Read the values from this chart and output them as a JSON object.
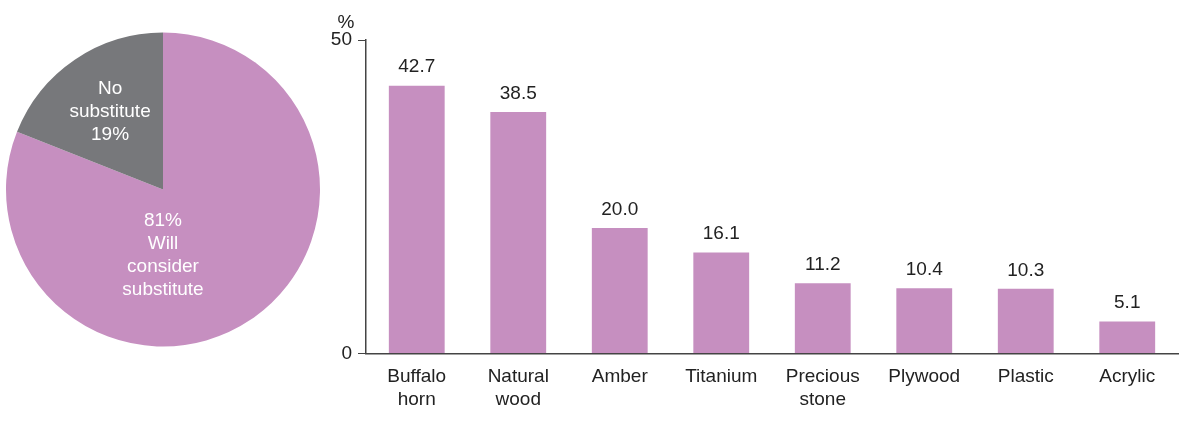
{
  "chart_data": [
    {
      "type": "pie",
      "categories": [
        "Will consider substitute",
        "No substitute"
      ],
      "values": [
        81,
        19
      ],
      "colors": [
        "#c68fc0",
        "#77787b"
      ],
      "value_labels": [
        "81%",
        "19%"
      ],
      "legend": false
    },
    {
      "type": "bar",
      "ylabel": "%",
      "categories": [
        "Buffalo horn",
        "Natural wood",
        "Amber",
        "Titanium",
        "Precious stone",
        "Plywood",
        "Plastic",
        "Acrylic"
      ],
      "values": [
        42.7,
        38.5,
        20.0,
        16.1,
        11.2,
        10.4,
        10.3,
        5.1
      ],
      "value_labels": [
        "42.7",
        "38.5",
        "20.0",
        "16.1",
        "11.2",
        "10.4",
        "10.3",
        "5.1"
      ],
      "color": "#c68fc0",
      "ylim": [
        0,
        50
      ],
      "yticks": [
        0,
        50
      ],
      "grid": false,
      "legend": false
    }
  ]
}
